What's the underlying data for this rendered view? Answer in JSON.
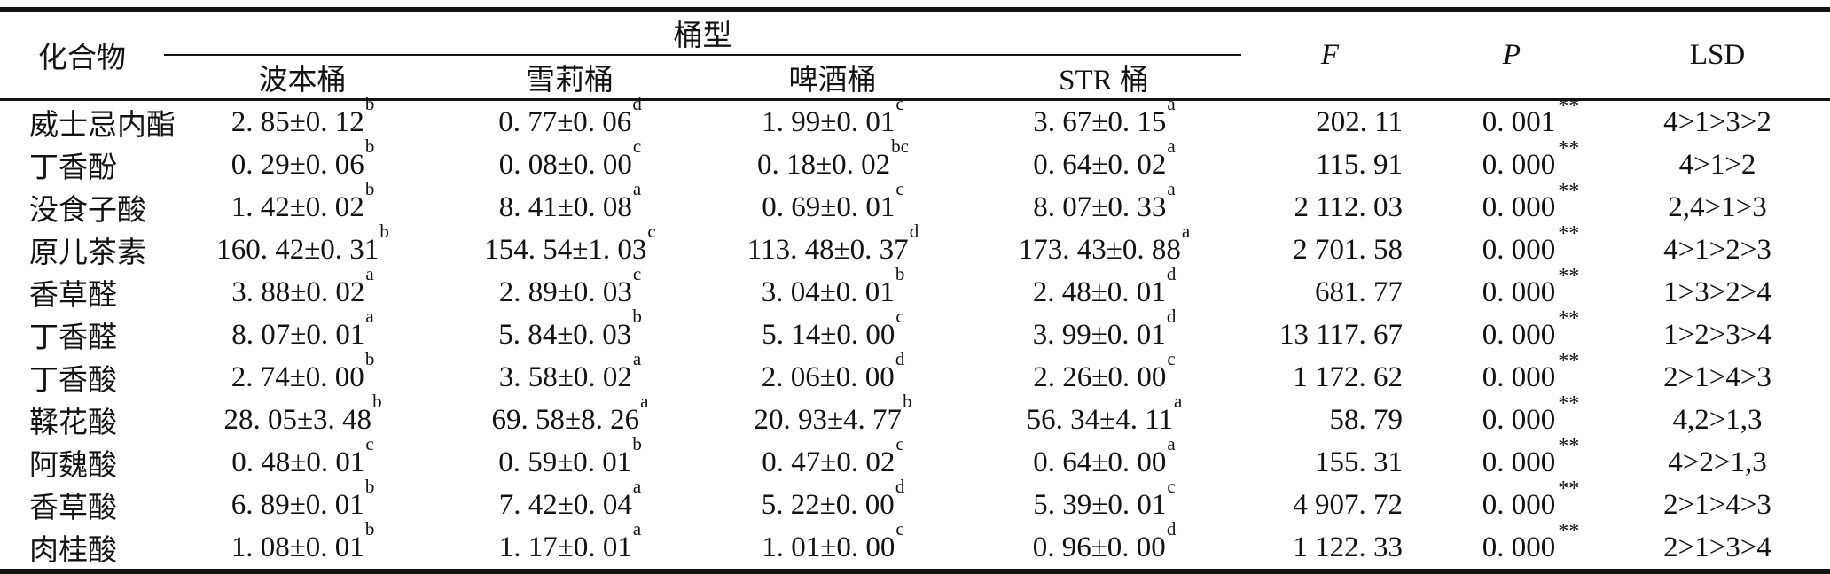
{
  "table": {
    "headers": {
      "compound": "化合物",
      "barrel_group": "桶型",
      "barrels": [
        "波本桶",
        "雪莉桶",
        "啤酒桶",
        "STR 桶"
      ],
      "f": "F",
      "p": "P",
      "lsd": "LSD"
    },
    "rows": [
      {
        "compound": "威士忌内酯",
        "barrel_values": [
          {
            "value": "2. 85±0. 12",
            "sup": "b"
          },
          {
            "value": "0. 77±0. 06",
            "sup": "d"
          },
          {
            "value": "1. 99±0. 01",
            "sup": "c"
          },
          {
            "value": "3. 67±0. 15",
            "sup": "a"
          }
        ],
        "f": "202. 11",
        "p": "0. 001",
        "p_sup": "**",
        "lsd": "4>1>3>2"
      },
      {
        "compound": "丁香酚",
        "barrel_values": [
          {
            "value": "0. 29±0. 06",
            "sup": "b"
          },
          {
            "value": "0. 08±0. 00",
            "sup": "c"
          },
          {
            "value": "0. 18±0. 02",
            "sup": "bc"
          },
          {
            "value": "0. 64±0. 02",
            "sup": "a"
          }
        ],
        "f": "115. 91",
        "p": "0. 000",
        "p_sup": "**",
        "lsd": "4>1>2"
      },
      {
        "compound": "没食子酸",
        "barrel_values": [
          {
            "value": "1. 42±0. 02",
            "sup": "b"
          },
          {
            "value": "8. 41±0. 08",
            "sup": "a"
          },
          {
            "value": "0. 69±0. 01",
            "sup": "c"
          },
          {
            "value": "8. 07±0. 33",
            "sup": "a"
          }
        ],
        "f": "2 112. 03",
        "p": "0. 000",
        "p_sup": "**",
        "lsd": "2,4>1>3"
      },
      {
        "compound": "原儿茶素",
        "barrel_values": [
          {
            "value": "160. 42±0. 31",
            "sup": "b"
          },
          {
            "value": "154. 54±1. 03",
            "sup": "c"
          },
          {
            "value": "113. 48±0. 37",
            "sup": "d"
          },
          {
            "value": "173. 43±0. 88",
            "sup": "a"
          }
        ],
        "f": "2 701. 58",
        "p": "0. 000",
        "p_sup": "**",
        "lsd": "4>1>2>3"
      },
      {
        "compound": "香草醛",
        "barrel_values": [
          {
            "value": "3. 88±0. 02",
            "sup": "a"
          },
          {
            "value": "2. 89±0. 03",
            "sup": "c"
          },
          {
            "value": "3. 04±0. 01",
            "sup": "b"
          },
          {
            "value": "2. 48±0. 01",
            "sup": "d"
          }
        ],
        "f": "681. 77",
        "p": "0. 000",
        "p_sup": "**",
        "lsd": "1>3>2>4"
      },
      {
        "compound": "丁香醛",
        "barrel_values": [
          {
            "value": "8. 07±0. 01",
            "sup": "a"
          },
          {
            "value": "5. 84±0. 03",
            "sup": "b"
          },
          {
            "value": "5. 14±0. 00",
            "sup": "c"
          },
          {
            "value": "3. 99±0. 01",
            "sup": "d"
          }
        ],
        "f": "13 117. 67",
        "p": "0. 000",
        "p_sup": "**",
        "lsd": "1>2>3>4"
      },
      {
        "compound": "丁香酸",
        "barrel_values": [
          {
            "value": "2. 74±0. 00",
            "sup": "b"
          },
          {
            "value": "3. 58±0. 02",
            "sup": "a"
          },
          {
            "value": "2. 06±0. 00",
            "sup": "d"
          },
          {
            "value": "2. 26±0. 00",
            "sup": "c"
          }
        ],
        "f": "1 172. 62",
        "p": "0. 000",
        "p_sup": "**",
        "lsd": "2>1>4>3"
      },
      {
        "compound": "鞣花酸",
        "barrel_values": [
          {
            "value": "28. 05±3. 48",
            "sup": "b"
          },
          {
            "value": "69. 58±8. 26",
            "sup": "a"
          },
          {
            "value": "20. 93±4. 77",
            "sup": "b"
          },
          {
            "value": "56. 34±4. 11",
            "sup": "a"
          }
        ],
        "f": "58. 79",
        "p": "0. 000",
        "p_sup": "**",
        "lsd": "4,2>1,3"
      },
      {
        "compound": "阿魏酸",
        "barrel_values": [
          {
            "value": "0. 48±0. 01",
            "sup": "c"
          },
          {
            "value": "0. 59±0. 01",
            "sup": "b"
          },
          {
            "value": "0. 47±0. 02",
            "sup": "c"
          },
          {
            "value": "0. 64±0. 00",
            "sup": "a"
          }
        ],
        "f": "155. 31",
        "p": "0. 000",
        "p_sup": "**",
        "lsd": "4>2>1,3"
      },
      {
        "compound": "香草酸",
        "barrel_values": [
          {
            "value": "6. 89±0. 01",
            "sup": "b"
          },
          {
            "value": "7. 42±0. 04",
            "sup": "a"
          },
          {
            "value": "5. 22±0. 00",
            "sup": "d"
          },
          {
            "value": "5. 39±0. 01",
            "sup": "c"
          }
        ],
        "f": "4 907. 72",
        "p": "0. 000",
        "p_sup": "**",
        "lsd": "2>1>4>3"
      },
      {
        "compound": "肉桂酸",
        "barrel_values": [
          {
            "value": "1. 08±0. 01",
            "sup": "b"
          },
          {
            "value": "1. 17±0. 01",
            "sup": "a"
          },
          {
            "value": "1. 01±0. 00",
            "sup": "c"
          },
          {
            "value": "0. 96±0. 00",
            "sup": "d"
          }
        ],
        "f": "1 122. 33",
        "p": "0. 000",
        "p_sup": "**",
        "lsd": "2>1>3>4"
      }
    ]
  },
  "colors": {
    "text": "#131313",
    "background": "#ffffff",
    "rule": "#131313"
  }
}
